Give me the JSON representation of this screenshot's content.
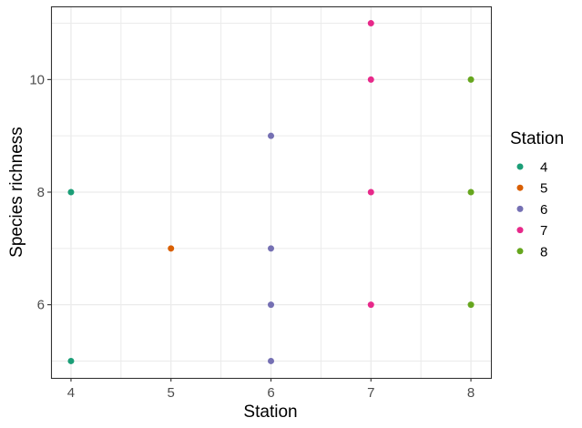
{
  "chart_data": {
    "type": "scatter",
    "title": "",
    "xlabel": "Station",
    "ylabel": "Species richness",
    "xlim": [
      3.8,
      8.2
    ],
    "ylim": [
      4.7,
      11.3
    ],
    "x_ticks": [
      4,
      5,
      6,
      7,
      8
    ],
    "y_ticks": [
      6,
      8,
      10
    ],
    "grid": true,
    "legend_position": "right",
    "legend_title": "Station",
    "series": [
      {
        "name": "4",
        "color": "#1B9E77",
        "points": [
          {
            "x": 4,
            "y": 8
          },
          {
            "x": 4,
            "y": 5
          }
        ]
      },
      {
        "name": "5",
        "color": "#D95F02",
        "points": [
          {
            "x": 5,
            "y": 7
          }
        ]
      },
      {
        "name": "6",
        "color": "#7570B3",
        "points": [
          {
            "x": 6,
            "y": 9
          },
          {
            "x": 6,
            "y": 7
          },
          {
            "x": 6,
            "y": 6
          },
          {
            "x": 6,
            "y": 5
          }
        ]
      },
      {
        "name": "7",
        "color": "#E7298A",
        "points": [
          {
            "x": 7,
            "y": 11
          },
          {
            "x": 7,
            "y": 10
          },
          {
            "x": 7,
            "y": 8
          },
          {
            "x": 7,
            "y": 6
          }
        ]
      },
      {
        "name": "8",
        "color": "#66A61E",
        "points": [
          {
            "x": 8,
            "y": 10
          },
          {
            "x": 8,
            "y": 8
          },
          {
            "x": 8,
            "y": 6
          }
        ]
      }
    ]
  },
  "colors": {
    "panel_border": "#333333",
    "grid_major": "#ebebeb",
    "grid_minor": "#f2f2f2",
    "tick_text": "#4d4d4d"
  }
}
